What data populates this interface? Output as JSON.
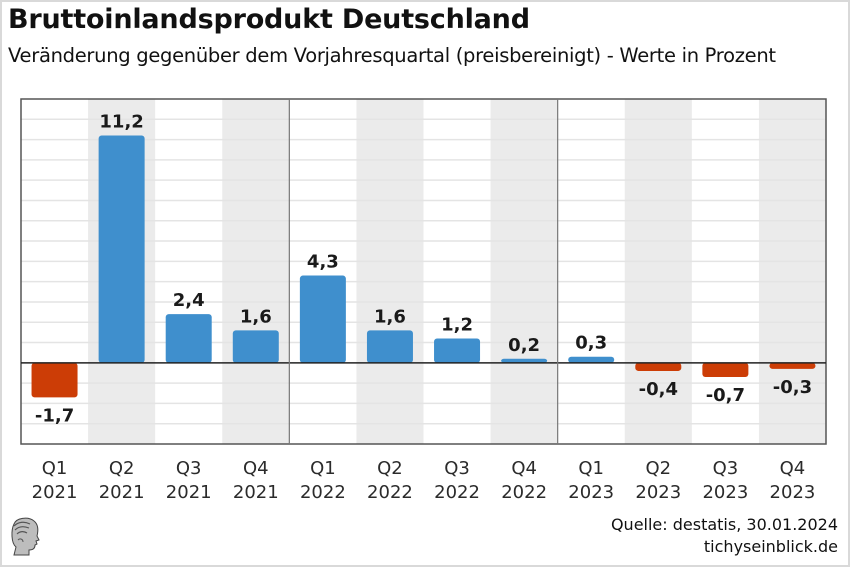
{
  "header": {
    "title": "Bruttoinlandsprodukt Deutschland",
    "subtitle": "Veränderung gegenüber dem Vorjahresquartal (preisbereinigt) - Werte in Prozent"
  },
  "footer": {
    "source": "Quelle: destatis, 30.01.2024",
    "site": "tichyseinblick.de",
    "logo": "hermes-head-logo-icon"
  },
  "colors": {
    "positive": "#3f8fcd",
    "negative": "#cc3d06",
    "band": "#ebebeb",
    "grid": "#e4e4e4",
    "axis": "#222222"
  },
  "chart_data": {
    "type": "bar",
    "title": "Bruttoinlandsprodukt Deutschland",
    "subtitle": "Veränderung gegenüber dem Vorjahresquartal (preisbereinigt) - Werte in Prozent",
    "xlabel": "",
    "ylabel": "",
    "categories": [
      [
        "Q1",
        "2021"
      ],
      [
        "Q2",
        "2021"
      ],
      [
        "Q3",
        "2021"
      ],
      [
        "Q4",
        "2021"
      ],
      [
        "Q1",
        "2022"
      ],
      [
        "Q2",
        "2022"
      ],
      [
        "Q3",
        "2022"
      ],
      [
        "Q4",
        "2022"
      ],
      [
        "Q1",
        "2023"
      ],
      [
        "Q2",
        "2023"
      ],
      [
        "Q3",
        "2023"
      ],
      [
        "Q4",
        "2023"
      ]
    ],
    "values": [
      -1.7,
      11.2,
      2.4,
      1.6,
      4.3,
      1.6,
      1.2,
      0.2,
      0.3,
      -0.4,
      -0.7,
      -0.3
    ],
    "value_labels": [
      "-1,7",
      "11,2",
      "2,4",
      "1,6",
      "4,3",
      "1,6",
      "1,2",
      "0,2",
      "0,3",
      "-0,4",
      "-0,7",
      "-0,3"
    ],
    "ylim": [
      -4,
      13
    ],
    "grid": true,
    "grid_step": 1,
    "year_separators_after_index": [
      3,
      7
    ],
    "alternating_bands": true,
    "legend": "none"
  }
}
